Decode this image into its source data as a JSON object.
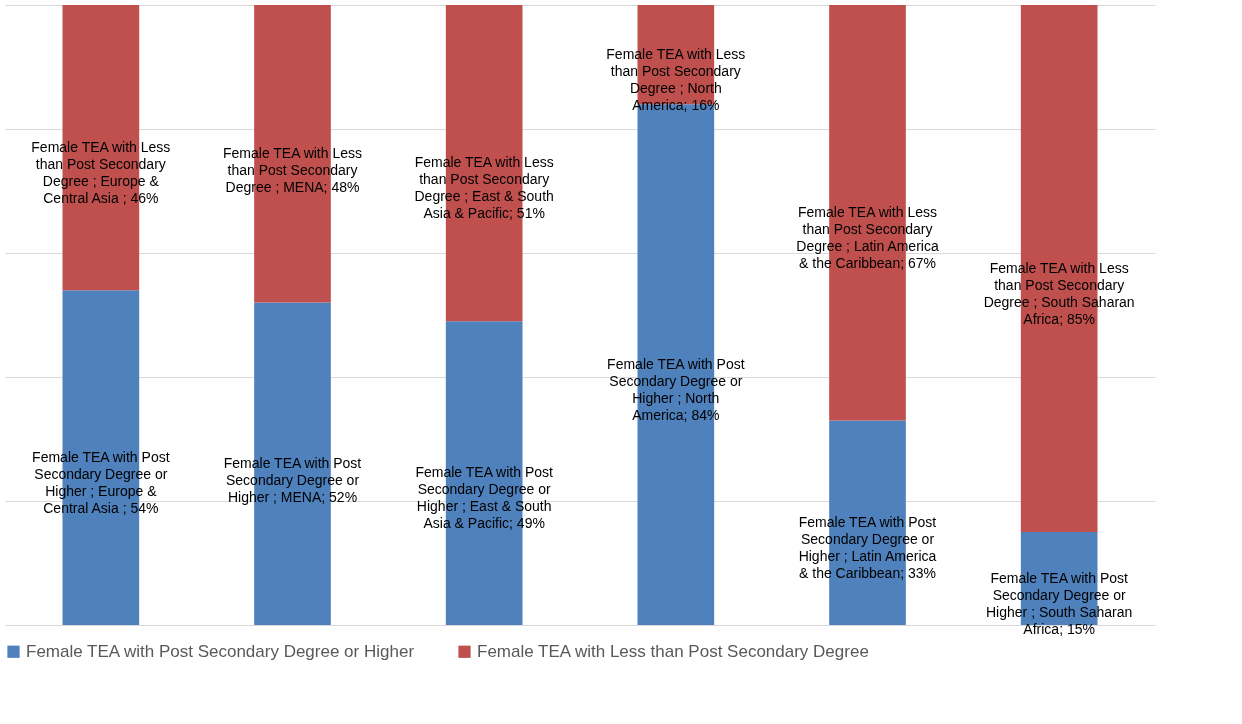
{
  "chart_data": {
    "type": "bar",
    "stacked": true,
    "categories": [
      null,
      null,
      null,
      null,
      null,
      null
    ],
    "series": [
      {
        "name": "Female TEA with Post Secondary Degree or Higher",
        "color": "#4f81bd",
        "values": [
          54,
          52,
          49,
          84,
          33,
          15
        ],
        "value_labels": [
          "Female TEA with Post Secondary Degree or Higher ; Europe & Central Asia ; 54%",
          "Female TEA with Post Secondary Degree or Higher ; MENA; 52%",
          "Female TEA with Post Secondary Degree or Higher ; East & South Asia & Pacific; 49%",
          "Female TEA with Post Secondary Degree or Higher ; North America; 84%",
          "Female TEA with Post Secondary Degree or Higher ; Latin America & the Caribbean; 33%",
          "Female TEA with Post Secondary Degree or Higher ; South Saharan Africa; 15%"
        ]
      },
      {
        "name": "Female TEA with Less than Post Secondary Degree",
        "color": "#c0504d",
        "values": [
          46,
          48,
          51,
          16,
          67,
          85
        ],
        "value_labels": [
          "Female TEA with Less than Post Secondary Degree ; Europe & Central Asia ; 46%",
          "Female TEA with Less than Post Secondary Degree ; MENA; 48%",
          "Female TEA with Less than Post Secondary Degree ; East & South Asia & Pacific; 51%",
          "Female TEA with Less than Post Secondary Degree ; North America; 16%",
          "Female TEA with Less than Post Secondary Degree ; Latin America & the Caribbean; 67%",
          "Female TEA with Less than Post Secondary Degree ; South Saharan Africa; 85%"
        ]
      }
    ],
    "ylim": [
      0,
      100
    ],
    "yticks": [
      {
        "value": 0,
        "label": null
      },
      {
        "value": 20,
        "label": null
      },
      {
        "value": 40,
        "label": null
      },
      {
        "value": 60,
        "label": null
      },
      {
        "value": 80,
        "label": null
      },
      {
        "value": 100,
        "label": null
      }
    ],
    "grid": "y",
    "legend": "bottom",
    "tick_labels": false
  }
}
